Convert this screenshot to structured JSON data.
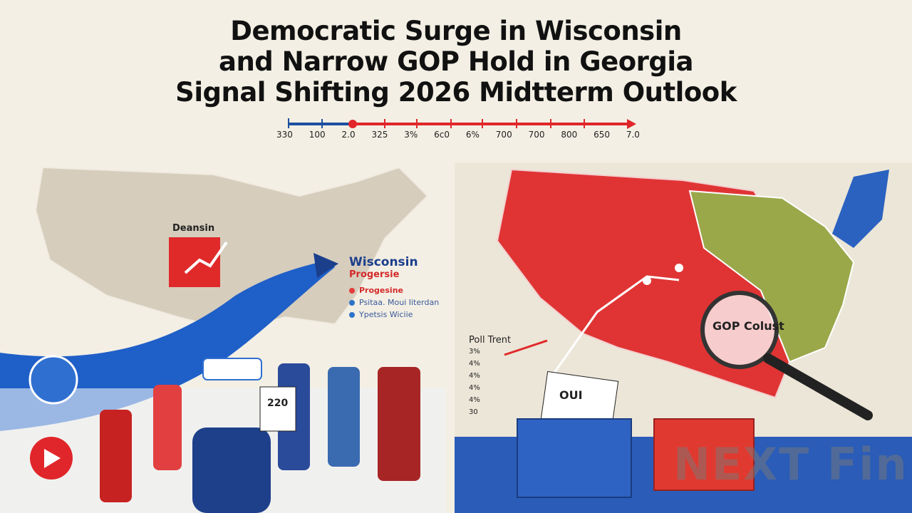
{
  "headline": {
    "line1": "Democratic Surge in Wisconsin",
    "line2": "and Narrow GOP Hold in Georgia",
    "line3": "Signal Shifting 2026 Midtterm Outlook"
  },
  "scale": {
    "ticks": [
      "330",
      "100",
      "2.0",
      "325",
      "3%",
      "6c0",
      "6%",
      "700",
      "700",
      "800",
      "650",
      "7.0"
    ],
    "colors": {
      "blue": "#1c4fa0",
      "red": "#e0262a"
    }
  },
  "left_panel": {
    "map_label": "Deansin",
    "legend": {
      "heading": "Wisconsin",
      "subheading": "Progersie",
      "items": [
        {
          "label": "Progesine",
          "color": "#e53b3b"
        },
        {
          "label": "Psitaa. Moui Iiterdan",
          "color": "#2f72c8"
        },
        {
          "label": "Ypetsis Wiciie",
          "color": "#2f72c8"
        }
      ]
    },
    "sign_text": "220"
  },
  "right_panel": {
    "poll_trend": {
      "title": "Poll Trent",
      "rows": [
        "3%",
        "4%",
        "4%",
        "4%",
        "4%",
        "30"
      ]
    },
    "magnifier_text": "GOP Colust",
    "ballot_text": "OUI"
  },
  "watermark": "NEXT Fin"
}
